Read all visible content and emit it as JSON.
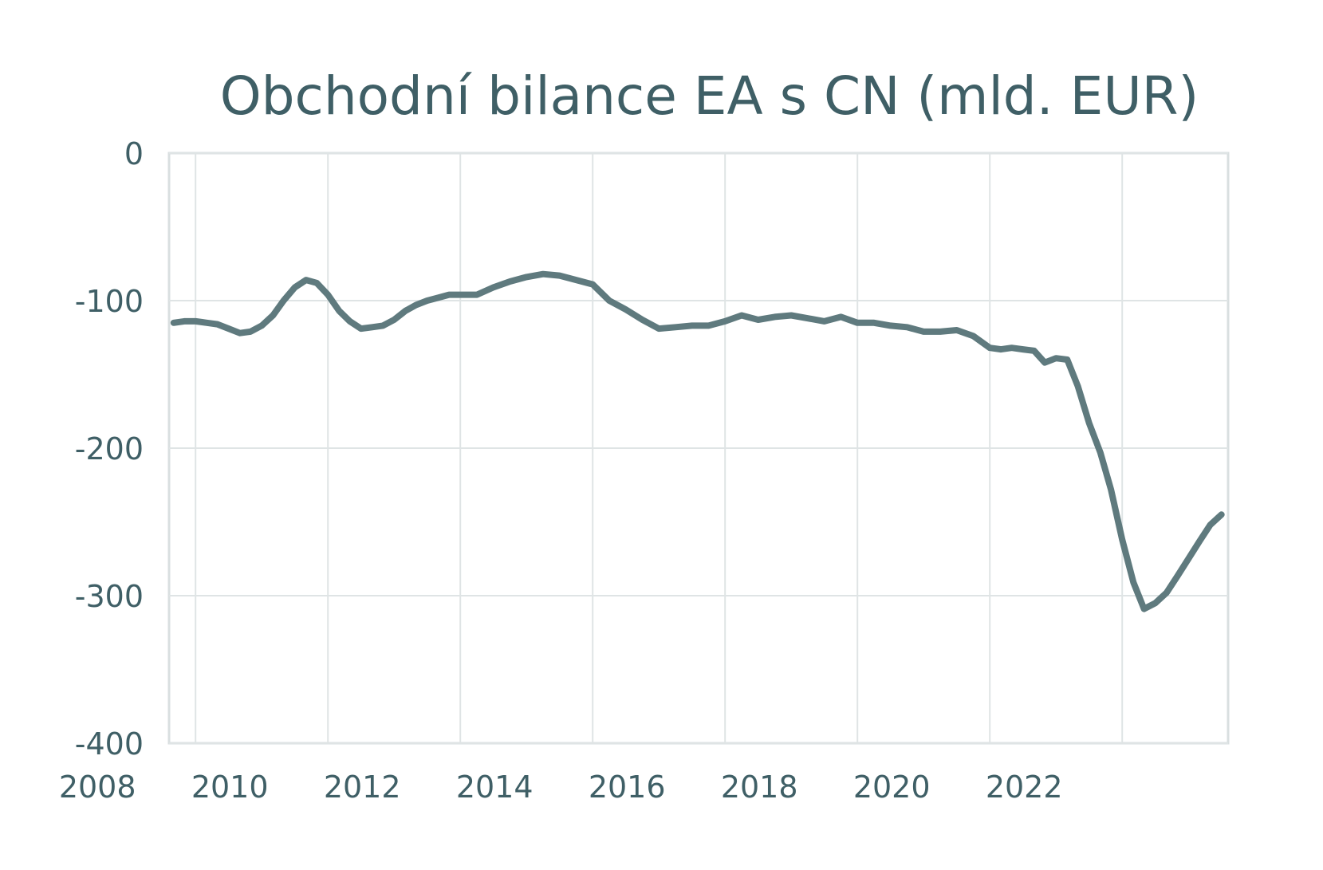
{
  "chart_data": {
    "type": "line",
    "title": "Obchodní bilance EA s CN (mld. EUR)",
    "xlabel": "",
    "ylabel": "",
    "xlim": [
      2007.6,
      2023.6
    ],
    "ylim": [
      -400,
      0
    ],
    "x_ticks": [
      "2008",
      "2010",
      "2012",
      "2014",
      "2016",
      "2018",
      "2020",
      "2022"
    ],
    "y_ticks": [
      "0",
      "-100",
      "-200",
      "-300",
      "-400"
    ],
    "grid": true,
    "legend": "none",
    "line_color": "#5f7a7e",
    "series": [
      {
        "x": [
          2007.67,
          2007.83,
          2008.0,
          2008.17,
          2008.33,
          2008.5,
          2008.67,
          2008.83,
          2009.0,
          2009.17,
          2009.33,
          2009.5,
          2009.67,
          2009.83,
          2010.0,
          2010.17,
          2010.33,
          2010.5,
          2010.67,
          2010.83,
          2011.0,
          2011.17,
          2011.33,
          2011.5,
          2011.67,
          2011.83,
          2012.0,
          2012.25,
          2012.5,
          2012.75,
          2013.0,
          2013.25,
          2013.5,
          2013.75,
          2014.0,
          2014.25,
          2014.5,
          2014.75,
          2015.0,
          2015.25,
          2015.5,
          2015.75,
          2016.0,
          2016.25,
          2016.5,
          2016.75,
          2017.0,
          2017.25,
          2017.5,
          2017.75,
          2018.0,
          2018.25,
          2018.5,
          2018.75,
          2019.0,
          2019.25,
          2019.5,
          2019.75,
          2020.0,
          2020.17,
          2020.33,
          2020.5,
          2020.67,
          2020.83,
          2021.0,
          2021.17,
          2021.33,
          2021.5,
          2021.67,
          2021.83,
          2022.0,
          2022.17,
          2022.33,
          2022.5,
          2022.67,
          2022.83,
          2023.0,
          2023.17,
          2023.33,
          2023.5
        ],
        "y": [
          -115,
          -114,
          -114,
          -115,
          -116,
          -119,
          -122,
          -121,
          -117,
          -110,
          -100,
          -91,
          -86,
          -88,
          -96,
          -107,
          -114,
          -119,
          -118,
          -117,
          -113,
          -107,
          -103,
          -100,
          -98,
          -96,
          -96,
          -96,
          -91,
          -87,
          -84,
          -82,
          -83,
          -86,
          -89,
          -100,
          -106,
          -113,
          -119,
          -118,
          -117,
          -117,
          -114,
          -110,
          -113,
          -111,
          -110,
          -112,
          -114,
          -111,
          -115,
          -115,
          -117,
          -118,
          -121,
          -121,
          -120,
          -124,
          -132,
          -133,
          -132,
          -133,
          -134,
          -142,
          -139,
          -140,
          -158,
          -183,
          -203,
          -228,
          -262,
          -291,
          -309,
          -305,
          -298,
          -287,
          -275,
          -263,
          -252,
          -245
        ]
      }
    ]
  }
}
